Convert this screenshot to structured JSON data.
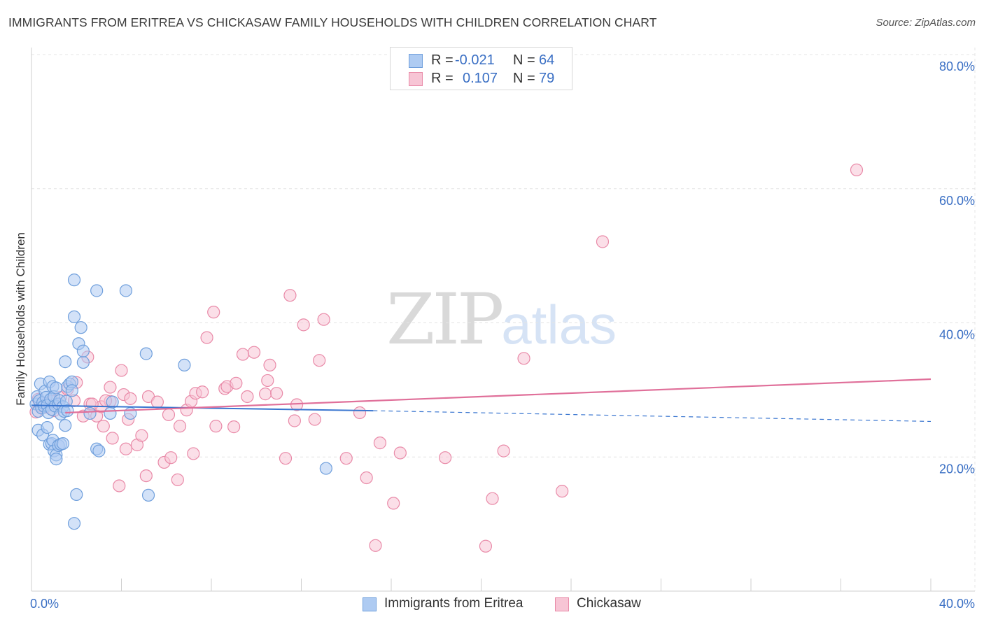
{
  "title": "IMMIGRANTS FROM ERITREA VS CHICKASAW FAMILY HOUSEHOLDS WITH CHILDREN CORRELATION CHART",
  "source": "Source: ZipAtlas.com",
  "watermark": {
    "zip": "ZIP",
    "atlas": "atlas"
  },
  "colors": {
    "blue_fill": "#aecbf2",
    "blue_stroke": "#6f9fdc",
    "blue_line": "#3a76d0",
    "pink_fill": "#f7c5d5",
    "pink_stroke": "#e98aa8",
    "pink_line": "#e0709a",
    "tick_text": "#3a6fc4",
    "grid": "#e4e4e4"
  },
  "legend": {
    "rows": [
      {
        "r_label": "R =",
        "r_value": "-0.021",
        "n_label": "N =",
        "n_value": "64"
      },
      {
        "r_label": "R =",
        "r_value": "0.107",
        "n_label": "N =",
        "n_value": "79"
      }
    ]
  },
  "bottom_legend": {
    "series1": "Immigrants from Eritrea",
    "series2": "Chickasaw"
  },
  "chart_data": {
    "type": "scatter",
    "title": "IMMIGRANTS FROM ERITREA VS CHICKASAW FAMILY HOUSEHOLDS WITH CHILDREN CORRELATION CHART",
    "xlabel": "",
    "ylabel": "Family Households with Children",
    "xlim": [
      0,
      40
    ],
    "ylim": [
      0,
      81
    ],
    "x_tick_labels": [
      "0.0%",
      "40.0%"
    ],
    "y_ticks": [
      20,
      40,
      60,
      80
    ],
    "y_tick_labels": [
      "20.0%",
      "40.0%",
      "60.0%",
      "80.0%"
    ],
    "grid": true,
    "series": [
      {
        "name": "Immigrants from Eritrea",
        "R": -0.021,
        "N": 64,
        "trend": {
          "x0": 0,
          "y0": 27.7,
          "x1": 15.2,
          "y1": 26.9,
          "dash_to_x": 40,
          "dash_to_y": 25.3
        },
        "points": [
          [
            0.2,
            27.9
          ],
          [
            0.25,
            29.0
          ],
          [
            0.3,
            26.8
          ],
          [
            0.35,
            28.4
          ],
          [
            0.4,
            30.9
          ],
          [
            0.45,
            27.3
          ],
          [
            0.5,
            28.1
          ],
          [
            0.55,
            27.6
          ],
          [
            0.6,
            29.8
          ],
          [
            0.65,
            28.9
          ],
          [
            0.7,
            27.7
          ],
          [
            0.75,
            26.6
          ],
          [
            0.8,
            31.2
          ],
          [
            0.85,
            28.6
          ],
          [
            0.9,
            27.1
          ],
          [
            0.95,
            30.5
          ],
          [
            1.0,
            29.0
          ],
          [
            1.05,
            27.6
          ],
          [
            1.1,
            30.3
          ],
          [
            1.2,
            27.9
          ],
          [
            1.25,
            28.4
          ],
          [
            1.3,
            26.4
          ],
          [
            1.4,
            27.5
          ],
          [
            1.45,
            26.8
          ],
          [
            1.5,
            34.2
          ],
          [
            1.6,
            30.5
          ],
          [
            1.7,
            30.9
          ],
          [
            1.8,
            31.2
          ],
          [
            0.3,
            24.0
          ],
          [
            0.5,
            23.3
          ],
          [
            0.7,
            24.4
          ],
          [
            0.8,
            21.9
          ],
          [
            0.9,
            22.0
          ],
          [
            0.95,
            22.5
          ],
          [
            1.0,
            20.9
          ],
          [
            1.1,
            20.3
          ],
          [
            1.1,
            19.7
          ],
          [
            1.2,
            21.7
          ],
          [
            1.3,
            21.9
          ],
          [
            1.4,
            22.0
          ],
          [
            1.5,
            24.7
          ],
          [
            1.55,
            28.3
          ],
          [
            1.6,
            26.9
          ],
          [
            1.8,
            29.9
          ],
          [
            1.9,
            40.9
          ],
          [
            1.9,
            46.4
          ],
          [
            2.1,
            36.9
          ],
          [
            2.2,
            39.3
          ],
          [
            2.3,
            34.1
          ],
          [
            2.3,
            35.8
          ],
          [
            2.6,
            26.5
          ],
          [
            2.9,
            44.8
          ],
          [
            2.9,
            21.2
          ],
          [
            3.0,
            20.9
          ],
          [
            3.5,
            26.5
          ],
          [
            3.6,
            28.2
          ],
          [
            4.2,
            44.8
          ],
          [
            4.4,
            26.5
          ],
          [
            5.1,
            35.4
          ],
          [
            5.2,
            14.3
          ],
          [
            6.8,
            33.7
          ],
          [
            13.1,
            18.3
          ],
          [
            2.0,
            14.4
          ],
          [
            1.9,
            10.1
          ]
        ]
      },
      {
        "name": "Chickasaw",
        "R": 0.107,
        "N": 79,
        "trend": {
          "x0": 1.5,
          "y0": 26.6,
          "x1": 40,
          "y1": 31.6
        },
        "points": [
          [
            0.2,
            26.7
          ],
          [
            0.4,
            27.6
          ],
          [
            0.6,
            27.4
          ],
          [
            1.3,
            28.9
          ],
          [
            1.6,
            30.1
          ],
          [
            1.9,
            28.4
          ],
          [
            2.0,
            31.1
          ],
          [
            2.3,
            26.1
          ],
          [
            2.5,
            34.9
          ],
          [
            2.6,
            27.9
          ],
          [
            2.9,
            26.1
          ],
          [
            3.1,
            27.5
          ],
          [
            3.2,
            24.6
          ],
          [
            3.5,
            30.4
          ],
          [
            3.5,
            28.3
          ],
          [
            3.6,
            22.8
          ],
          [
            3.9,
            15.7
          ],
          [
            4.0,
            32.9
          ],
          [
            4.1,
            29.3
          ],
          [
            4.2,
            21.2
          ],
          [
            4.3,
            25.6
          ],
          [
            4.4,
            28.7
          ],
          [
            4.7,
            21.8
          ],
          [
            4.9,
            23.2
          ],
          [
            5.1,
            17.2
          ],
          [
            5.2,
            29.0
          ],
          [
            5.6,
            28.2
          ],
          [
            5.9,
            19.2
          ],
          [
            6.1,
            26.3
          ],
          [
            6.2,
            19.9
          ],
          [
            6.5,
            16.6
          ],
          [
            6.6,
            24.6
          ],
          [
            6.9,
            27.0
          ],
          [
            7.1,
            28.3
          ],
          [
            7.2,
            20.5
          ],
          [
            7.3,
            29.5
          ],
          [
            7.6,
            29.7
          ],
          [
            7.8,
            37.8
          ],
          [
            8.1,
            41.6
          ],
          [
            8.2,
            24.6
          ],
          [
            8.6,
            30.2
          ],
          [
            8.7,
            30.5
          ],
          [
            9.0,
            24.5
          ],
          [
            9.1,
            31.0
          ],
          [
            9.4,
            35.3
          ],
          [
            9.6,
            29.0
          ],
          [
            9.9,
            35.6
          ],
          [
            10.4,
            29.4
          ],
          [
            10.5,
            31.4
          ],
          [
            10.6,
            33.7
          ],
          [
            10.9,
            29.5
          ],
          [
            11.3,
            19.8
          ],
          [
            11.5,
            44.1
          ],
          [
            11.7,
            25.4
          ],
          [
            11.8,
            27.8
          ],
          [
            12.1,
            39.7
          ],
          [
            12.6,
            25.6
          ],
          [
            12.8,
            34.4
          ],
          [
            13.0,
            40.5
          ],
          [
            14.0,
            19.8
          ],
          [
            14.6,
            26.6
          ],
          [
            14.9,
            16.9
          ],
          [
            15.3,
            6.8
          ],
          [
            15.5,
            22.1
          ],
          [
            16.1,
            13.1
          ],
          [
            16.4,
            20.6
          ],
          [
            18.4,
            19.9
          ],
          [
            20.2,
            6.7
          ],
          [
            20.5,
            13.8
          ],
          [
            21.0,
            20.9
          ],
          [
            21.9,
            34.7
          ],
          [
            23.6,
            14.9
          ],
          [
            25.4,
            52.1
          ],
          [
            36.7,
            62.8
          ],
          [
            0.3,
            28.6
          ],
          [
            0.9,
            28.3
          ],
          [
            1.0,
            26.9
          ],
          [
            2.7,
            27.9
          ],
          [
            3.3,
            28.4
          ]
        ]
      }
    ]
  }
}
